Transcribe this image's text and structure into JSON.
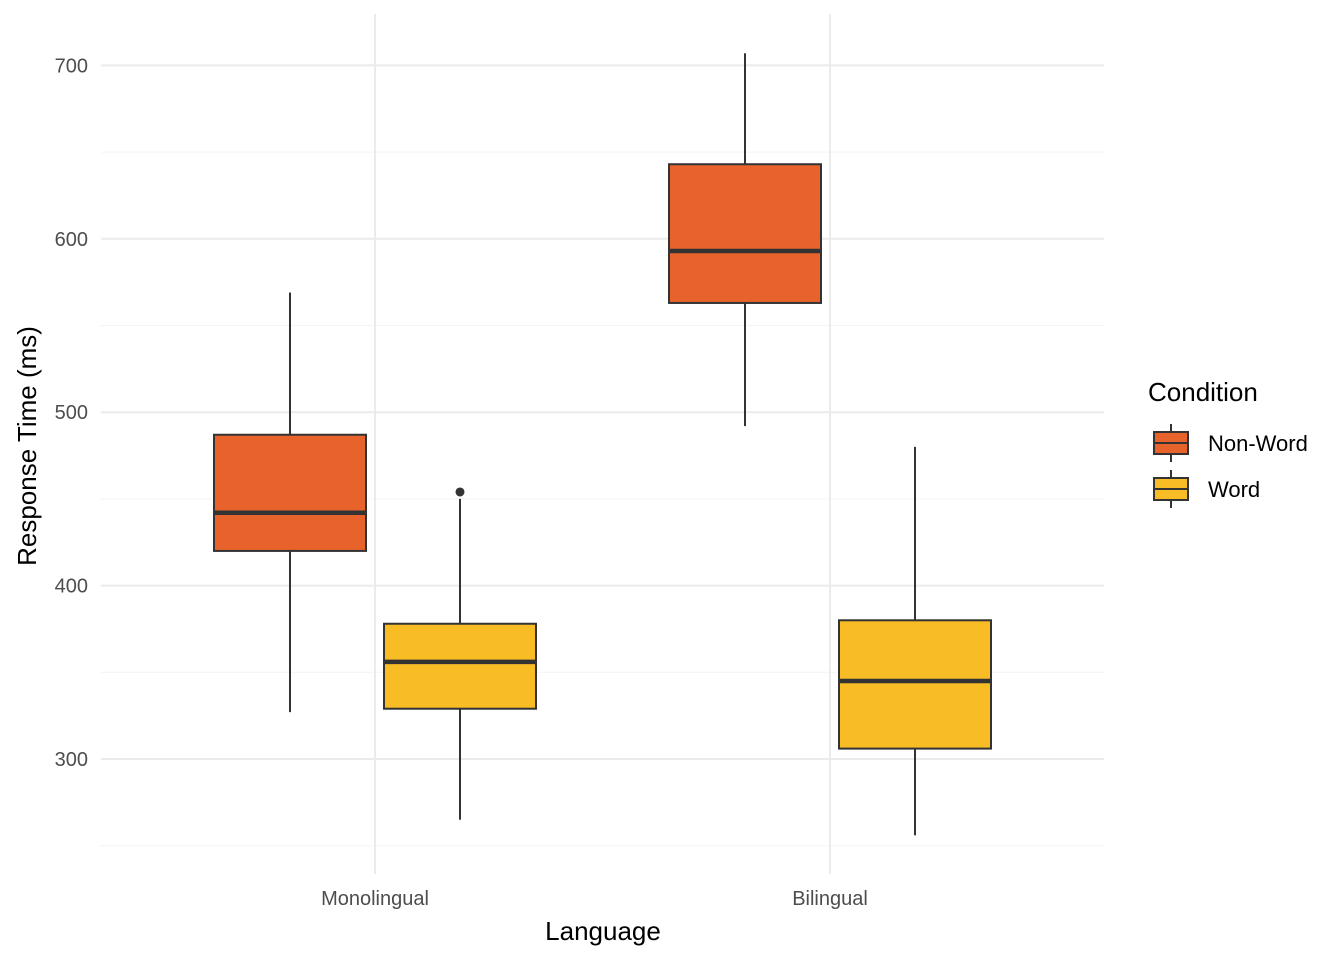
{
  "chart_data": {
    "type": "boxplot",
    "xlabel": "Language",
    "ylabel": "Response Time (ms)",
    "categories": [
      "Monolingual",
      "Bilingual"
    ],
    "ylim": [
      245,
      725
    ],
    "y_ticks": [
      300,
      400,
      500,
      600,
      700
    ],
    "y_tick_labels": [
      "300",
      "400",
      "500",
      "600",
      "700"
    ],
    "grid": true,
    "legend": {
      "title": "Condition",
      "placement": "right"
    },
    "series": [
      {
        "name": "Non-Word",
        "color": "#E8632B",
        "boxes": [
          {
            "category": "Monolingual",
            "lower_whisker": 327,
            "q1": 420,
            "median": 442,
            "q3": 487,
            "upper_whisker": 569,
            "outliers": []
          },
          {
            "category": "Bilingual",
            "lower_whisker": 492,
            "q1": 563,
            "median": 593,
            "q3": 643,
            "upper_whisker": 707,
            "outliers": []
          }
        ]
      },
      {
        "name": "Word",
        "color": "#F8BC24",
        "boxes": [
          {
            "category": "Monolingual",
            "lower_whisker": 265,
            "q1": 329,
            "median": 356,
            "q3": 378,
            "upper_whisker": 450,
            "outliers": [
              454
            ]
          },
          {
            "category": "Bilingual",
            "lower_whisker": 256,
            "q1": 306,
            "median": 345,
            "q3": 380,
            "upper_whisker": 480,
            "outliers": []
          }
        ]
      }
    ]
  }
}
